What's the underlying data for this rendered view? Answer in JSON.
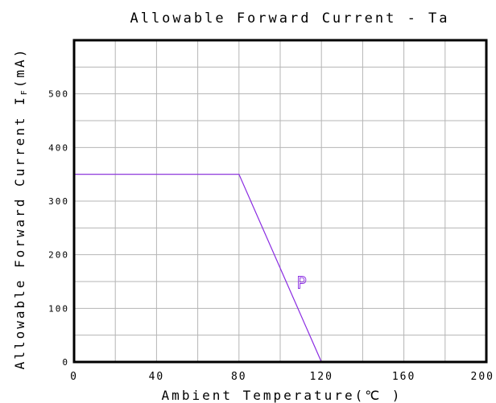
{
  "chart_data": {
    "type": "line",
    "title": "Allowable Forward Current - Ta",
    "xlabel": "Ambient Temperature(℃ )",
    "ylabel": "Allowable Forward Current I",
    "ylabel_subscript": "F",
    "ylabel_unit": "(mA)",
    "xlim": [
      0,
      200
    ],
    "ylim": [
      0,
      600
    ],
    "x_ticks": [
      0,
      40,
      80,
      120,
      160,
      200
    ],
    "x_tick_labels": [
      "0",
      "40",
      "80",
      "120",
      "160",
      "200"
    ],
    "x_grid": [
      20,
      40,
      60,
      80,
      100,
      120,
      140,
      160,
      180
    ],
    "y_ticks": [
      0,
      100,
      200,
      300,
      400,
      500
    ],
    "y_tick_labels": [
      "0",
      "100",
      "200",
      "300",
      "400",
      "500"
    ],
    "y_grid": [
      50,
      100,
      150,
      200,
      250,
      300,
      350,
      400,
      450,
      500,
      550
    ],
    "grid": true,
    "series": [
      {
        "annotation": "P",
        "color": "#8a2be2",
        "x": [
          0,
          80,
          120
        ],
        "y": [
          350,
          350,
          0
        ]
      }
    ],
    "annotations": [
      {
        "text": "P",
        "x": 108,
        "y": 137,
        "color": "#8a2be2"
      }
    ]
  }
}
